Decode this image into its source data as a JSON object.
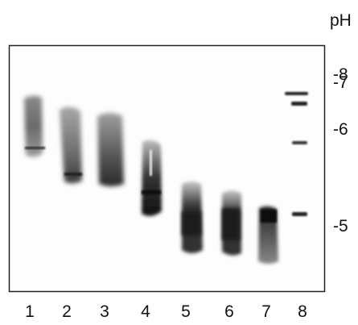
{
  "axis": {
    "title": "pH"
  },
  "ph_ticks": [
    "-8",
    "-7",
    "-6",
    "-5"
  ],
  "lanes": [
    "1",
    "2",
    "3",
    "4",
    "5",
    "6",
    "7",
    "8"
  ]
}
